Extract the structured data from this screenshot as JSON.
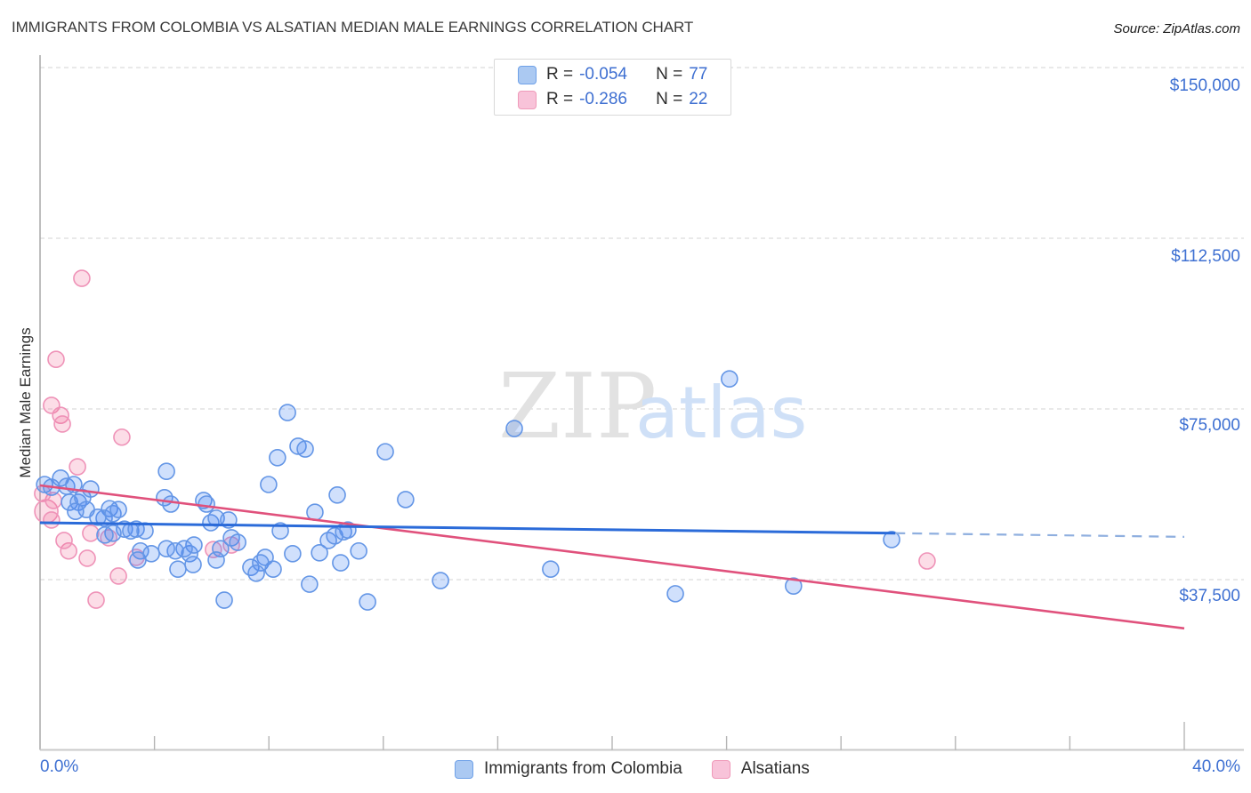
{
  "header": {
    "title": "IMMIGRANTS FROM COLOMBIA VS ALSATIAN MEDIAN MALE EARNINGS CORRELATION CHART",
    "source": "Source: ZipAtlas.com"
  },
  "legend_box": {
    "rows": [
      {
        "series": "colombia",
        "r_label": "R =",
        "r_value": "-0.054",
        "n_label": "N =",
        "n_value": "77"
      },
      {
        "series": "alsatians",
        "r_label": "R =",
        "r_value": "-0.286",
        "n_label": "N =",
        "n_value": "22"
      }
    ]
  },
  "watermark": {
    "zip": "ZIP",
    "atlas": "atlas"
  },
  "axes": {
    "y_title": "Median Male Earnings",
    "x_min_label": "0.0%",
    "x_max_label": "40.0%",
    "y_tick_labels": [
      "$150,000",
      "$112,500",
      "$75,000",
      "$37,500"
    ]
  },
  "bottom_legend": {
    "colombia": "Immigrants from Colombia",
    "alsatians": "Alsatians"
  },
  "colors": {
    "blue_point_stroke": "#6496e6",
    "blue_point_fill": "rgba(66,133,244,0.25)",
    "pink_point_stroke": "#ef93b8",
    "pink_point_fill": "rgba(240,98,146,0.22)",
    "blue_trend": "#2b6bd9",
    "blue_trend_dashed": "#8fafdf",
    "pink_trend": "#e0517c",
    "gridline": "#dcdcdc",
    "axis_line": "#c9c9c9",
    "y_axis_line": "#a3a3a3",
    "tick": "#b5b5b5",
    "label_blue": "#3e70d2",
    "watermark_zip": "#e2e2e2",
    "watermark_atlas": "#cfe0f7"
  },
  "chart_data": {
    "type": "scatter",
    "title": "IMMIGRANTS FROM COLOMBIA VS ALSATIAN MEDIAN MALE EARNINGS CORRELATION CHART",
    "xlabel": "Immigrants from Colombia (%)",
    "ylabel": "Median Male Earnings ($)",
    "x_range": [
      0,
      40
    ],
    "y_range": [
      0,
      150000
    ],
    "y_gridlines": [
      150000,
      112500,
      75000,
      37500
    ],
    "x_ticks_every_pct": 4,
    "grid": "dashed-horizontal",
    "legend_position": "top-center and bottom",
    "series": [
      {
        "name": "Immigrants from Colombia",
        "R": -0.054,
        "N": 77,
        "points": [
          [
            0.72,
            59800
          ],
          [
            0.16,
            58400
          ],
          [
            0.4,
            57800
          ],
          [
            0.93,
            58000
          ],
          [
            1.18,
            58400
          ],
          [
            1.03,
            54500
          ],
          [
            1.34,
            54500
          ],
          [
            1.49,
            55500
          ],
          [
            1.77,
            57400
          ],
          [
            1.62,
            52900
          ],
          [
            1.24,
            52500
          ],
          [
            2.43,
            53100
          ],
          [
            2.24,
            51000
          ],
          [
            2.55,
            52000
          ],
          [
            2.02,
            51200
          ],
          [
            2.74,
            52900
          ],
          [
            2.95,
            48600
          ],
          [
            3.17,
            48200
          ],
          [
            2.55,
            47700
          ],
          [
            2.27,
            47300
          ],
          [
            3.36,
            48600
          ],
          [
            3.67,
            48200
          ],
          [
            4.42,
            61300
          ],
          [
            4.35,
            55500
          ],
          [
            4.57,
            54100
          ],
          [
            5.72,
            54900
          ],
          [
            5.82,
            54100
          ],
          [
            5.97,
            50000
          ],
          [
            6.16,
            51000
          ],
          [
            6.59,
            50600
          ],
          [
            6.69,
            46700
          ],
          [
            6.91,
            45700
          ],
          [
            6.31,
            44300
          ],
          [
            6.16,
            41800
          ],
          [
            5.23,
            43200
          ],
          [
            5.38,
            45100
          ],
          [
            5.04,
            44300
          ],
          [
            4.73,
            43800
          ],
          [
            4.42,
            44300
          ],
          [
            3.51,
            43800
          ],
          [
            3.42,
            41800
          ],
          [
            3.89,
            43200
          ],
          [
            4.82,
            39800
          ],
          [
            5.35,
            40800
          ],
          [
            7.37,
            40200
          ],
          [
            6.44,
            33000
          ],
          [
            8.65,
            74200
          ],
          [
            9.02,
            66800
          ],
          [
            9.27,
            66200
          ],
          [
            8.3,
            64300
          ],
          [
            7.99,
            58400
          ],
          [
            10.39,
            56100
          ],
          [
            12.07,
            65600
          ],
          [
            12.78,
            55100
          ],
          [
            9.61,
            52300
          ],
          [
            8.4,
            48200
          ],
          [
            7.87,
            42400
          ],
          [
            7.71,
            41200
          ],
          [
            7.56,
            38900
          ],
          [
            8.15,
            39800
          ],
          [
            8.83,
            43200
          ],
          [
            9.77,
            43400
          ],
          [
            10.08,
            46100
          ],
          [
            10.3,
            47100
          ],
          [
            10.61,
            48000
          ],
          [
            10.76,
            48400
          ],
          [
            11.14,
            43800
          ],
          [
            10.51,
            41200
          ],
          [
            9.42,
            36500
          ],
          [
            14.0,
            37300
          ],
          [
            11.45,
            32600
          ],
          [
            16.58,
            70700
          ],
          [
            17.85,
            39800
          ],
          [
            22.21,
            34400
          ],
          [
            24.1,
            81600
          ],
          [
            26.34,
            36100
          ],
          [
            29.77,
            46300
          ]
        ]
      },
      {
        "name": "Alsatians",
        "R": -0.286,
        "N": 22,
        "points": [
          [
            1.46,
            103700
          ],
          [
            0.56,
            85900
          ],
          [
            0.4,
            75800
          ],
          [
            0.72,
            73600
          ],
          [
            0.78,
            71700
          ],
          [
            2.86,
            68800
          ],
          [
            1.31,
            62300
          ],
          [
            0.22,
            52500,
            13
          ],
          [
            0.47,
            54900
          ],
          [
            1.77,
            47700
          ],
          [
            2.4,
            46700
          ],
          [
            1.0,
            43800
          ],
          [
            1.65,
            42200
          ],
          [
            3.36,
            42400
          ],
          [
            2.74,
            38300
          ],
          [
            1.96,
            33000
          ],
          [
            6.06,
            44100
          ],
          [
            6.69,
            45100
          ],
          [
            31.01,
            41600
          ],
          [
            0.09,
            56400
          ],
          [
            0.4,
            50600
          ],
          [
            0.84,
            46100
          ]
        ]
      }
    ],
    "trend_lines": [
      {
        "series": "Immigrants from Colombia",
        "solid": [
          [
            0,
            50000
          ],
          [
            29.9,
            47700
          ]
        ],
        "dashed": [
          [
            29.9,
            47700
          ],
          [
            40,
            46900
          ]
        ]
      },
      {
        "series": "Alsatians",
        "solid": [
          [
            0,
            58200
          ],
          [
            40,
            26800
          ]
        ]
      }
    ]
  }
}
